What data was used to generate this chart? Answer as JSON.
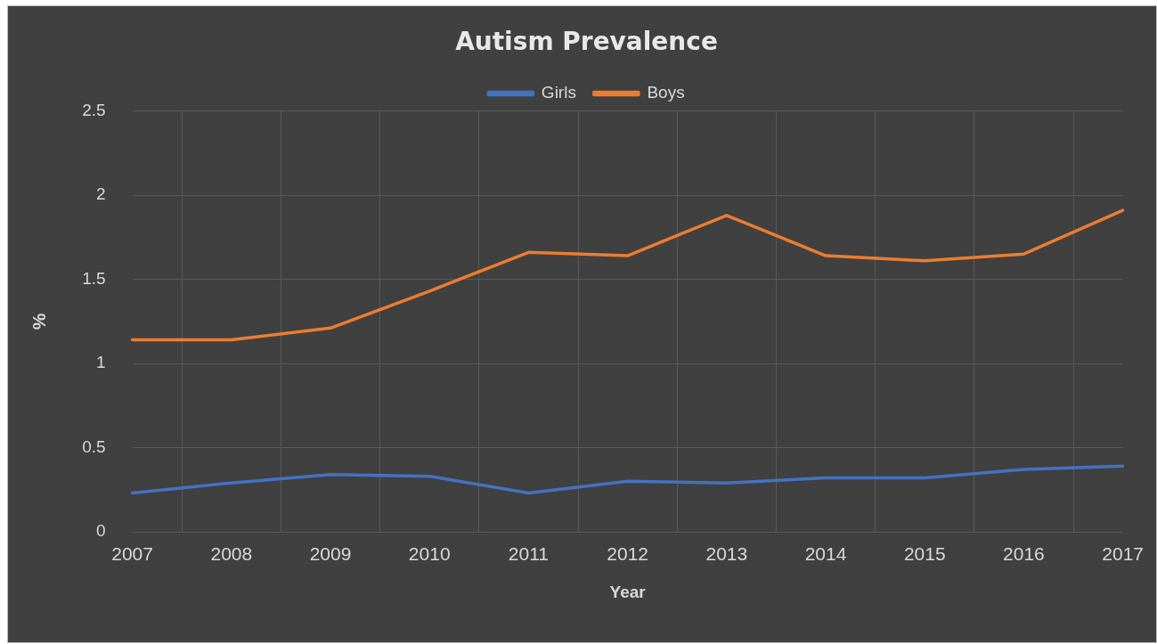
{
  "chart_data": {
    "type": "line",
    "title": "Autism Prevalence",
    "xlabel": "Year",
    "ylabel": "%",
    "categories": [
      "2007",
      "2008",
      "2009",
      "2010",
      "2011",
      "2012",
      "2013",
      "2014",
      "2015",
      "2016",
      "2017"
    ],
    "series": [
      {
        "name": "Girls",
        "color": "#4472c4",
        "values": [
          0.23,
          0.29,
          0.34,
          0.33,
          0.23,
          0.3,
          0.29,
          0.32,
          0.32,
          0.37,
          0.39
        ]
      },
      {
        "name": "Boys",
        "color": "#ed7d31",
        "values": [
          1.14,
          1.14,
          1.21,
          1.43,
          1.66,
          1.64,
          1.88,
          1.64,
          1.61,
          1.65,
          1.91
        ]
      }
    ],
    "ylim": [
      0,
      2.5
    ],
    "yticks": [
      0,
      0.5,
      1,
      1.5,
      2,
      2.5
    ],
    "grid": true,
    "legend": "top",
    "marker": "none",
    "line_style": "solid"
  }
}
